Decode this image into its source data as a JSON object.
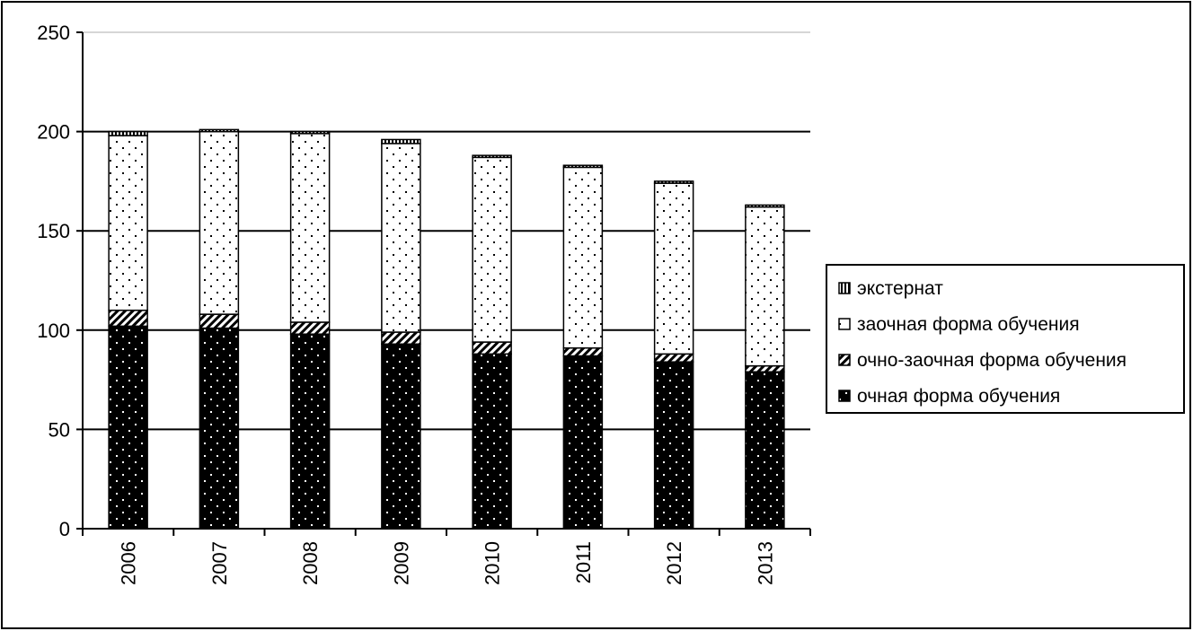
{
  "chart_data": {
    "type": "bar",
    "stacked": true,
    "title": "",
    "xlabel": "",
    "ylabel": "",
    "categories": [
      "2006",
      "2007",
      "2008",
      "2009",
      "2010",
      "2011",
      "2012",
      "2013"
    ],
    "ylim": [
      0,
      250
    ],
    "yticks": [
      0,
      50,
      100,
      150,
      200,
      250
    ],
    "grid": true,
    "legend_position": "right",
    "series": [
      {
        "name": "очная форма обучения",
        "values": [
          102,
          101,
          98,
          93,
          88,
          87,
          84,
          79
        ],
        "pattern": "black-dotted"
      },
      {
        "name": "очно-заочная форма обучения",
        "values": [
          8,
          7,
          6,
          6,
          6,
          4,
          4,
          3
        ],
        "pattern": "diagonal-hatch"
      },
      {
        "name": "заочная форма обучения",
        "values": [
          88,
          92,
          95,
          95,
          93,
          91,
          86,
          80
        ],
        "pattern": "white-dotted"
      },
      {
        "name": "экстернат",
        "values": [
          2,
          1,
          1,
          2,
          1,
          1,
          1,
          1
        ],
        "pattern": "vertical-lines"
      }
    ],
    "legend_order": [
      "экстернат",
      "заочная форма обучения",
      "очно-заочная форма обучения",
      "очная форма обучения"
    ]
  }
}
